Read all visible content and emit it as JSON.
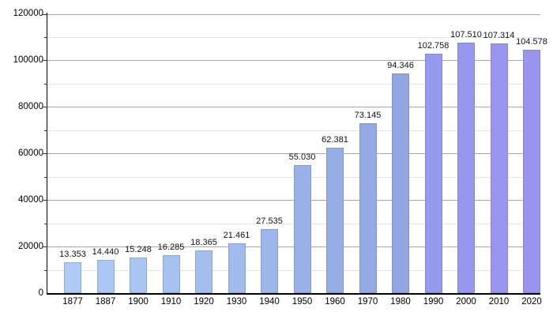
{
  "chart_data": {
    "type": "bar",
    "title": "",
    "xlabel": "",
    "ylabel": "",
    "legend": "none",
    "grid": "horizontal major + minor",
    "ylim": [
      0,
      120000
    ],
    "ytick_major_values": [
      0,
      20000,
      40000,
      60000,
      80000,
      100000,
      120000
    ],
    "ytick_major_labels": [
      "0",
      "20000",
      "40000",
      "60000",
      "80000",
      "100000",
      "120000"
    ],
    "ytick_minor_step": 10000,
    "categories": [
      "1877",
      "1887",
      "1900",
      "1910",
      "1920",
      "1930",
      "1940",
      "1950",
      "1960",
      "1970",
      "1980",
      "1990",
      "2000",
      "2010",
      "2020"
    ],
    "values": [
      13353,
      14440,
      15248,
      16285,
      18365,
      21461,
      27535,
      55030,
      62381,
      73145,
      94346,
      102758,
      107510,
      107314,
      104578
    ],
    "value_labels": [
      "13.353",
      "14.440",
      "15.248",
      "16.285",
      "18.365",
      "21.461",
      "27.535",
      "55.030",
      "62.381",
      "73.145",
      "94.346",
      "102.758",
      "107.510",
      "107.314",
      "104.578"
    ],
    "bar_colors": [
      "#AECBF5",
      "#ABC8F4",
      "#A9C5F2",
      "#A6C2F1",
      "#A4BFEF",
      "#A1BBED",
      "#9EB7EB",
      "#9AB1E8",
      "#97ADE5",
      "#95A9E4",
      "#93A5E2",
      "#9799EE",
      "#9996F0",
      "#9A95F0",
      "#9B94EF"
    ],
    "colors": {
      "background": "#FFFFFF",
      "axis": "#000000",
      "major_grid": "#A8A8A8",
      "minor_grid": "#E4E4E4",
      "label_text": "#111111"
    }
  }
}
